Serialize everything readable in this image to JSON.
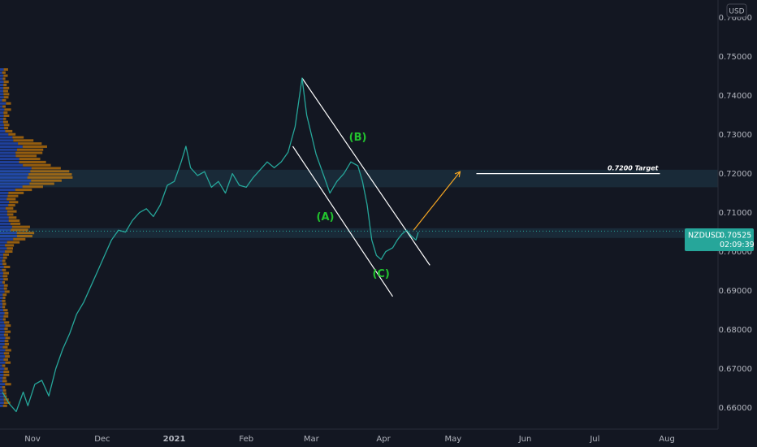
{
  "chart_data": {
    "type": "line",
    "symbol": "NZDUSD",
    "currency": "USD",
    "last_price": "0.70525",
    "countdown": "02:09:39",
    "target_label": "0.7200 Target",
    "y_ticks": [
      "0.76000",
      "0.75000",
      "0.74000",
      "0.73000",
      "0.72000",
      "0.71000",
      "0.70000",
      "0.69000",
      "0.68000",
      "0.67000",
      "0.66000"
    ],
    "ylim": [
      0.6545,
      0.7645
    ],
    "x_ticks": [
      "Nov",
      "Dec",
      "2021",
      "Feb",
      "Mar",
      "Apr",
      "May",
      "Jun",
      "Jul",
      "Aug"
    ],
    "x_tick_dates": [
      "2020-11-01",
      "2020-12-01",
      "2021-01-01",
      "2021-02-01",
      "2021-03-01",
      "2021-04-01",
      "2021-05-01",
      "2021-06-01",
      "2021-07-01",
      "2021-08-01"
    ],
    "xlim": [
      "2020-10-18",
      "2021-08-23"
    ],
    "series": [
      {
        "color": "#26a69a",
        "points": [
          [
            "2020-10-19",
            0.664
          ],
          [
            "2020-10-22",
            0.661
          ],
          [
            "2020-10-25",
            0.659
          ],
          [
            "2020-10-28",
            0.664
          ],
          [
            "2020-10-30",
            0.6605
          ],
          [
            "2020-11-02",
            0.666
          ],
          [
            "2020-11-05",
            0.667
          ],
          [
            "2020-11-08",
            0.663
          ],
          [
            "2020-11-11",
            0.67
          ],
          [
            "2020-11-14",
            0.675
          ],
          [
            "2020-11-17",
            0.679
          ],
          [
            "2020-11-20",
            0.684
          ],
          [
            "2020-11-23",
            0.687
          ],
          [
            "2020-11-26",
            0.691
          ],
          [
            "2020-11-29",
            0.695
          ],
          [
            "2020-12-02",
            0.699
          ],
          [
            "2020-12-05",
            0.703
          ],
          [
            "2020-12-08",
            0.7055
          ],
          [
            "2020-12-11",
            0.705
          ],
          [
            "2020-12-14",
            0.708
          ],
          [
            "2020-12-17",
            0.71
          ],
          [
            "2020-12-20",
            0.711
          ],
          [
            "2020-12-23",
            0.709
          ],
          [
            "2020-12-26",
            0.712
          ],
          [
            "2020-12-29",
            0.717
          ],
          [
            "2021-01-01",
            0.718
          ],
          [
            "2021-01-04",
            0.723
          ],
          [
            "2021-01-06",
            0.727
          ],
          [
            "2021-01-08",
            0.7215
          ],
          [
            "2021-01-11",
            0.7195
          ],
          [
            "2021-01-14",
            0.7205
          ],
          [
            "2021-01-17",
            0.7165
          ],
          [
            "2021-01-20",
            0.718
          ],
          [
            "2021-01-23",
            0.715
          ],
          [
            "2021-01-26",
            0.72
          ],
          [
            "2021-01-29",
            0.717
          ],
          [
            "2021-02-01",
            0.7165
          ],
          [
            "2021-02-04",
            0.719
          ],
          [
            "2021-02-07",
            0.721
          ],
          [
            "2021-02-10",
            0.723
          ],
          [
            "2021-02-13",
            0.7215
          ],
          [
            "2021-02-16",
            0.723
          ],
          [
            "2021-02-19",
            0.7255
          ],
          [
            "2021-02-22",
            0.732
          ],
          [
            "2021-02-25",
            0.7445
          ],
          [
            "2021-02-27",
            0.735
          ],
          [
            "2021-03-01",
            0.73
          ],
          [
            "2021-03-03",
            0.725
          ],
          [
            "2021-03-06",
            0.72
          ],
          [
            "2021-03-09",
            0.715
          ],
          [
            "2021-03-12",
            0.718
          ],
          [
            "2021-03-15",
            0.72
          ],
          [
            "2021-03-18",
            0.723
          ],
          [
            "2021-03-21",
            0.722
          ],
          [
            "2021-03-23",
            0.718
          ],
          [
            "2021-03-25",
            0.712
          ],
          [
            "2021-03-27",
            0.703
          ],
          [
            "2021-03-29",
            0.699
          ],
          [
            "2021-03-31",
            0.698
          ],
          [
            "2021-04-02",
            0.7
          ],
          [
            "2021-04-05",
            0.701
          ],
          [
            "2021-04-07",
            0.703
          ],
          [
            "2021-04-09",
            0.7045
          ],
          [
            "2021-04-11",
            0.7055
          ],
          [
            "2021-04-13",
            0.704
          ],
          [
            "2021-04-15",
            0.703
          ],
          [
            "2021-04-16",
            0.705
          ]
        ]
      }
    ],
    "annotations": [
      {
        "label": "(A)",
        "date": "2021-03-07",
        "price": 0.708
      },
      {
        "label": "(B)",
        "date": "2021-03-21",
        "price": 0.7285
      },
      {
        "label": "(C)",
        "date": "2021-03-31",
        "price": 0.6935
      }
    ],
    "channel_lines": [
      {
        "start": [
          "2021-02-25",
          0.7445
        ],
        "end": [
          "2021-04-21",
          0.6965
        ]
      },
      {
        "start": [
          "2021-02-21",
          0.727
        ],
        "end": [
          "2021-04-05",
          0.6885
        ]
      }
    ],
    "arrow": {
      "start": [
        "2021-04-14",
        0.7055
      ],
      "end": [
        "2021-05-04",
        0.7205
      ]
    },
    "target_line": {
      "start": "2021-05-11",
      "end": "2021-07-29",
      "price": 0.72
    },
    "zones": [
      {
        "from": 0.7165,
        "to": 0.721
      },
      {
        "from": 0.7035,
        "to": 0.706
      }
    ],
    "volume_profile_levels": 22,
    "legend": "none",
    "grid": false
  }
}
